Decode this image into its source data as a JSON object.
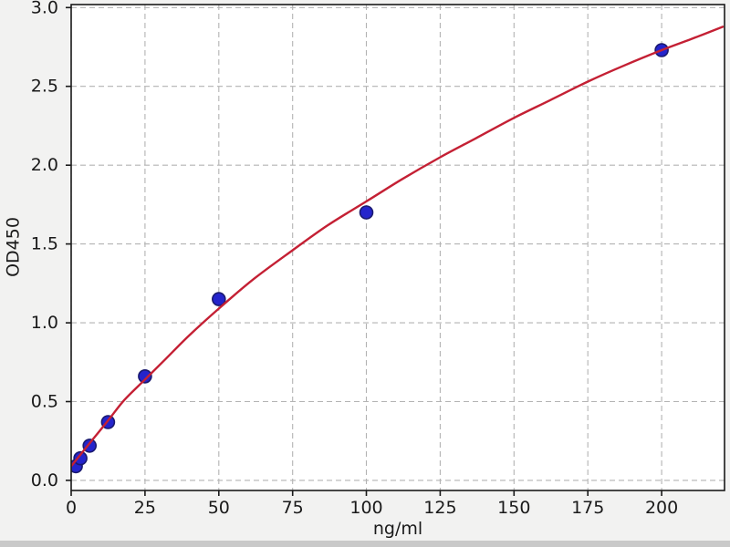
{
  "figure": {
    "background": "#f2f2f1",
    "plot_background": "#ffffff",
    "spine_color": "#1a1a1a",
    "grid_color": "#b3b3b3",
    "bottom_strip_color": "#c9c9c9"
  },
  "chart_data": {
    "type": "scatter",
    "title": "",
    "xlabel": "ng/ml",
    "ylabel": "OD450",
    "xlim": [
      0,
      221.3
    ],
    "ylim": [
      -0.064,
      3.019
    ],
    "x_ticks": [
      0,
      25,
      50,
      75,
      100,
      125,
      150,
      175,
      200
    ],
    "x_tick_labels": [
      "0",
      "25",
      "50",
      "75",
      "100",
      "125",
      "150",
      "175",
      "200"
    ],
    "y_ticks": [
      0.0,
      0.5,
      1.0,
      1.5,
      2.0,
      2.5,
      3.0
    ],
    "y_tick_labels": [
      "0.0",
      "0.5",
      "1.0",
      "1.5",
      "2.0",
      "2.5",
      "3.0"
    ],
    "grid": true,
    "grid_style": "dashed",
    "legend": "none",
    "series": [
      {
        "name": "standard-points",
        "type": "scatter",
        "color": "#2424cc",
        "edge_color": "#1a1a70",
        "marker_radius": 7,
        "points": [
          [
            1.5625,
            0.09
          ],
          [
            3.125,
            0.14
          ],
          [
            6.25,
            0.22
          ],
          [
            12.5,
            0.37
          ],
          [
            25,
            0.66
          ],
          [
            50,
            1.15
          ],
          [
            100,
            1.7
          ],
          [
            200,
            2.73
          ]
        ]
      },
      {
        "name": "fit-curve",
        "type": "line",
        "color": "#c42034",
        "line_width": 2.4,
        "points": [
          [
            0,
            0.09
          ],
          [
            6,
            0.23
          ],
          [
            12.5,
            0.38
          ],
          [
            18,
            0.51
          ],
          [
            25,
            0.64
          ],
          [
            32,
            0.77
          ],
          [
            40,
            0.92
          ],
          [
            50,
            1.09
          ],
          [
            62,
            1.28
          ],
          [
            75,
            1.46
          ],
          [
            87,
            1.62
          ],
          [
            100,
            1.77
          ],
          [
            112,
            1.91
          ],
          [
            125,
            2.05
          ],
          [
            137,
            2.17
          ],
          [
            150,
            2.3
          ],
          [
            162,
            2.41
          ],
          [
            175,
            2.53
          ],
          [
            187,
            2.63
          ],
          [
            200,
            2.73
          ],
          [
            210,
            2.8
          ],
          [
            221,
            2.88
          ]
        ]
      }
    ]
  }
}
